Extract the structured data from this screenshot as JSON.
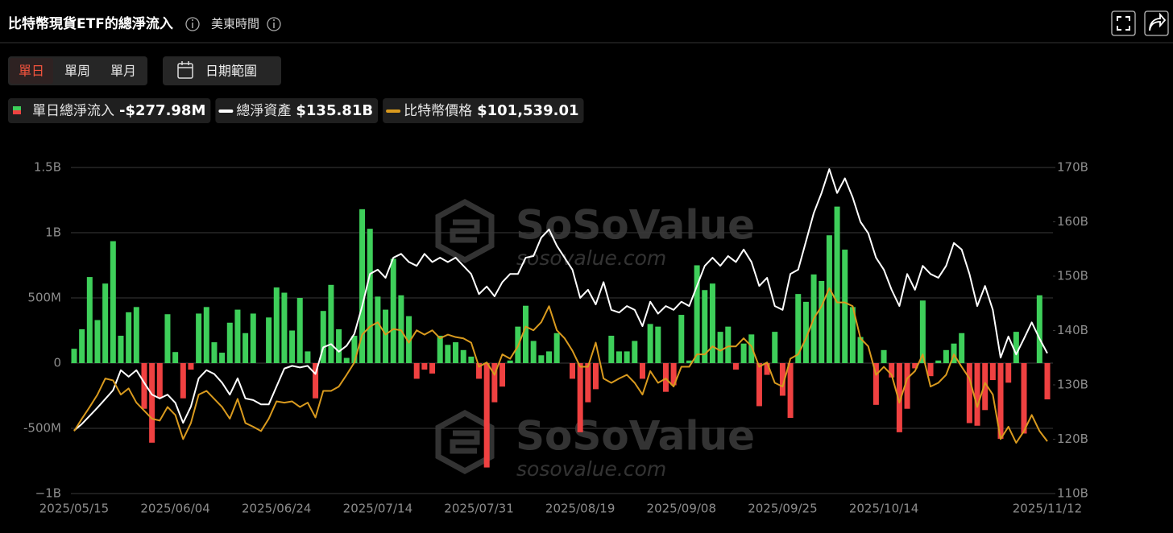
{
  "ui": {
    "title": "比特幣現貨ETF的總淨流入",
    "timezone": "美東時間",
    "tabs": [
      "單日",
      "單周",
      "單月"
    ],
    "active_tab": 0,
    "date_range": "日期範圍",
    "watermark": {
      "brand": "SoSoValue",
      "site": "sosovalue.com"
    }
  },
  "chart_data": {
    "type": "combo",
    "categories": [
      "2025/05/15",
      null,
      null,
      null,
      null,
      null,
      null,
      null,
      null,
      null,
      null,
      null,
      null,
      "2025/06/04",
      null,
      null,
      null,
      null,
      null,
      null,
      null,
      null,
      null,
      null,
      null,
      null,
      "2025/06/24",
      null,
      null,
      null,
      null,
      null,
      null,
      null,
      null,
      null,
      null,
      null,
      null,
      "2025/07/14",
      null,
      null,
      null,
      null,
      null,
      null,
      null,
      null,
      null,
      null,
      null,
      null,
      "2025/07/31",
      null,
      null,
      null,
      null,
      null,
      null,
      null,
      null,
      null,
      null,
      null,
      null,
      "2025/08/19",
      null,
      null,
      null,
      null,
      null,
      null,
      null,
      null,
      null,
      null,
      null,
      null,
      "2025/09/08",
      null,
      null,
      null,
      null,
      null,
      null,
      null,
      null,
      null,
      null,
      null,
      null,
      "2025/09/25",
      null,
      null,
      null,
      null,
      null,
      null,
      null,
      null,
      null,
      null,
      null,
      null,
      "2025/10/14",
      null,
      null,
      null,
      null,
      null,
      null,
      null,
      null,
      null,
      null,
      null,
      null,
      null,
      null,
      null,
      null,
      null,
      null,
      null,
      null,
      "2025/11/12"
    ],
    "ylim": [
      -1000000000,
      1500000000
    ],
    "yticks": [
      {
        "value": -1000000000,
        "label": "−1B"
      },
      {
        "value": -500000000,
        "label": "-500M"
      },
      0,
      {
        "value": 500000000,
        "label": "500M"
      },
      {
        "value": 1000000000,
        "label": "1B"
      },
      {
        "value": 1500000000,
        "label": "1.5B"
      }
    ],
    "y2lim": [
      110000000000,
      170000000000
    ],
    "y2ticks": [
      {
        "value": 110000000000,
        "label": "110B"
      },
      {
        "value": 120000000000,
        "label": "120B"
      },
      {
        "value": 130000000000,
        "label": "130B"
      },
      {
        "value": 140000000000,
        "label": "140B"
      },
      {
        "value": 150000000000,
        "label": "150B"
      },
      {
        "value": 160000000000,
        "label": "160B"
      },
      {
        "value": 170000000000,
        "label": "170B"
      }
    ],
    "grid": true,
    "series": [
      {
        "name": "單日總淨流入",
        "type": "bar",
        "color": "#3ecf5a",
        "negative_color": "#ef4141",
        "current_label": "-$277.98M",
        "values": [
          110000000.0,
          260000000.0,
          660000000.0,
          330000000.0,
          610000000.0,
          935000000.0,
          210000000.0,
          390000000.0,
          430000000.0,
          -350000000.0,
          -610000000.0,
          -265000000.0,
          375000000.0,
          85000000.0,
          -270000000.0,
          -50000000.0,
          380000000.0,
          430000000.0,
          160000000.0,
          80000000.0,
          310000000.0,
          410000000.0,
          230000000.0,
          380000000.0,
          0,
          350000000.0,
          580000000.0,
          540000000.0,
          250000000.0,
          500000000.0,
          90000000.0,
          -270000000.0,
          400000000.0,
          600000000.0,
          260000000.0,
          40000000.0,
          210000000.0,
          1180000000.0,
          1030000000.0,
          510000000.0,
          410000000.0,
          800000000.0,
          520000000.0,
          360000000.0,
          -120000000.0,
          -50000000.0,
          -80000000.0,
          210000000.0,
          140000000.0,
          160000000.0,
          100000000.0,
          50000000.0,
          -120000000.0,
          -800000000.0,
          -300000000.0,
          -180000000.0,
          20000000.0,
          280000000.0,
          440000000.0,
          170000000.0,
          60000000.0,
          90000000.0,
          230000000.0,
          0,
          -120000000.0,
          -530000000.0,
          -300000000.0,
          -200000000.0,
          0,
          210000000.0,
          90000000.0,
          90000000.0,
          170000000.0,
          -120000000.0,
          300000000.0,
          280000000.0,
          -220000000.0,
          -170000000.0,
          370000000.0,
          20000000.0,
          750000000.0,
          560000000.0,
          610000000.0,
          240000000.0,
          280000000.0,
          -50000000.0,
          150000000.0,
          220000000.0,
          -330000000.0,
          -90000000.0,
          240000000.0,
          -250000000.0,
          -420000000.0,
          530000000.0,
          470000000.0,
          680000000.0,
          630000000.0,
          980000000.0,
          1200000000.0,
          870000000.0,
          430000000.0,
          200000000.0,
          0,
          -320000000.0,
          100000000.0,
          -110000000.0,
          -530000000.0,
          -350000000.0,
          -40000000.0,
          480000000.0,
          -100000000.0,
          20000000.0,
          100000000.0,
          150000000.0,
          230000000.0,
          -460000000.0,
          -480000000.0,
          -360000000.0,
          -130000000.0,
          -580000000.0,
          -150000000.0,
          240000000.0,
          -540000000.0,
          0,
          520000000.0,
          -277980000.0
        ]
      },
      {
        "name": "總淨資產",
        "type": "line",
        "axis": "y2",
        "color": "#ffffff",
        "current_label": "$135.81B",
        "values": [
          121600000000.0,
          122800000000.0,
          124300000000.0,
          125800000000.0,
          127400000000.0,
          129000000000.0,
          132700000000.0,
          131500000000.0,
          132700000000.0,
          130400000000.0,
          128200000000.0,
          127500000000.0,
          128200000000.0,
          126700000000.0,
          123000000000.0,
          126000000000.0,
          131200000000.0,
          132700000000.0,
          132000000000.0,
          130400000000.0,
          128200000000.0,
          131200000000.0,
          127500000000.0,
          127200000000.0,
          126400000000.0,
          126400000000.0,
          129700000000.0,
          133000000000.0,
          133500000000.0,
          133200000000.0,
          133500000000.0,
          132000000000.0,
          136900000000.0,
          137500000000.0,
          136100000000.0,
          137200000000.0,
          139400000000.0,
          144500000000.0,
          150400000000.0,
          151200000000.0,
          149700000000.0,
          153400000000.0,
          154100000000.0,
          152600000000.0,
          151900000000.0,
          154100000000.0,
          152600000000.0,
          153400000000.0,
          152600000000.0,
          153400000000.0,
          151900000000.0,
          150400000000.0,
          146700000000.0,
          148100000000.0,
          146300000000.0,
          148900000000.0,
          150400000000.0,
          150400000000.0,
          153400000000.0,
          153700000000.0,
          157100000000.0,
          158600000000.0,
          155600000000.0,
          153400000000.0,
          151200000000.0,
          146000000000.0,
          147500000000.0,
          144800000000.0,
          148900000000.0,
          143800000000.0,
          143300000000.0,
          144500000000.0,
          143800000000.0,
          140800000000.0,
          145300000000.0,
          143100000000.0,
          144500000000.0,
          143800000000.0,
          145300000000.0,
          144500000000.0,
          148200000000.0,
          151900000000.0,
          153400000000.0,
          151900000000.0,
          153700000000.0,
          152600000000.0,
          154900000000.0,
          152600000000.0,
          148200000000.0,
          149700000000.0,
          144500000000.0,
          143800000000.0,
          150400000000.0,
          151200000000.0,
          156400000000.0,
          161600000000.0,
          165300000000.0,
          169700000000.0,
          165300000000.0,
          168000000000.0,
          164500000000.0,
          160000000000.0,
          157900000000.0,
          153400000000.0,
          151200000000.0,
          147500000000.0,
          144500000000.0,
          150400000000.0,
          147500000000.0,
          151900000000.0,
          150400000000.0,
          149700000000.0,
          151900000000.0,
          156100000000.0,
          154900000000.0,
          150400000000.0,
          144500000000.0,
          148200000000.0,
          143800000000.0,
          135000000000.0,
          138900000000.0,
          135600000000.0,
          138500000000.0,
          141500000000.0,
          138500000000.0,
          135810000000.0
        ]
      },
      {
        "name": "比特幣價格",
        "type": "line",
        "color": "#d99a1e",
        "current_label": "$101,539.01",
        "values": [
          103200,
          105200,
          107100,
          109100,
          111700,
          111400,
          109100,
          110100,
          107800,
          106500,
          105200,
          104900,
          107100,
          105800,
          101900,
          104500,
          109100,
          109700,
          108400,
          107100,
          105200,
          108400,
          104500,
          103900,
          103200,
          105200,
          108000,
          107800,
          108000,
          107100,
          107800,
          105400,
          109700,
          109700,
          110400,
          112300,
          114300,
          118800,
          120100,
          120800,
          118800,
          119700,
          119500,
          117500,
          119500,
          118800,
          119500,
          118200,
          118800,
          118400,
          118200,
          117500,
          113600,
          114300,
          112300,
          115600,
          114900,
          116900,
          120100,
          119500,
          120800,
          123400,
          119500,
          118200,
          116200,
          113600,
          113600,
          117500,
          111700,
          111000,
          111700,
          112300,
          111000,
          109100,
          112900,
          111000,
          111700,
          110400,
          113600,
          113600,
          115600,
          115600,
          116900,
          116200,
          116900,
          116900,
          118200,
          116900,
          113600,
          114300,
          111000,
          110400,
          114900,
          115600,
          118200,
          121400,
          123400,
          126300,
          124000,
          124000,
          123400,
          118200,
          116900,
          112300,
          113600,
          112300,
          107800,
          111700,
          112900,
          115600,
          110400,
          111000,
          112300,
          115600,
          113600,
          111700,
          107100,
          111000,
          109100,
          101900,
          103900,
          101300,
          103200,
          105800,
          103200,
          101539.01
        ]
      }
    ]
  }
}
